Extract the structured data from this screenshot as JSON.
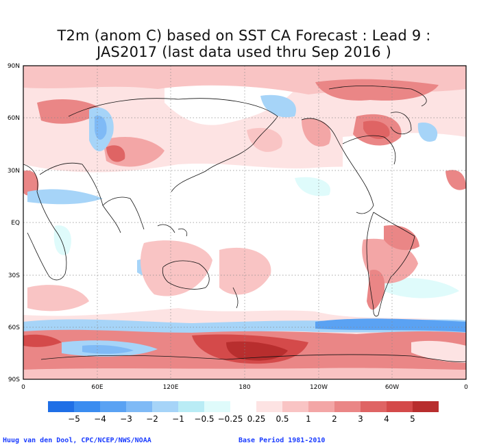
{
  "title": {
    "line1": "T2m (anom C) based on SST CA Forecast : Lead 9 :",
    "line2": "JAS2017 (last data used thru Sep 2016 )"
  },
  "axes": {
    "lat_labels": [
      "90N",
      "60N",
      "30N",
      "EQ",
      "30S",
      "60S",
      "90S"
    ],
    "lon_labels": [
      "0",
      "60E",
      "120E",
      "180",
      "120W",
      "60W",
      "0"
    ]
  },
  "colorbar": {
    "labels": [
      "−5",
      "−4",
      "−3",
      "−2",
      "−1",
      "−0.5",
      "−0.25",
      "0.25",
      "0.5",
      "1",
      "2",
      "3",
      "4",
      "5"
    ],
    "colors": [
      "#1f6fe6",
      "#3a8cf0",
      "#5aa2f3",
      "#7fbaf6",
      "#a6d4f8",
      "#b9ecf5",
      "#dffbfb",
      "#ffffff",
      "#fde3e3",
      "#f9c4c4",
      "#f3a6a6",
      "#ea8686",
      "#df6464",
      "#d44a4a",
      "#b82e2e"
    ]
  },
  "footer": {
    "credit": "Huug van den Dool, CPC/NCEP/NWS/NOAA",
    "base_period": "Base Period 1981-2010"
  }
}
